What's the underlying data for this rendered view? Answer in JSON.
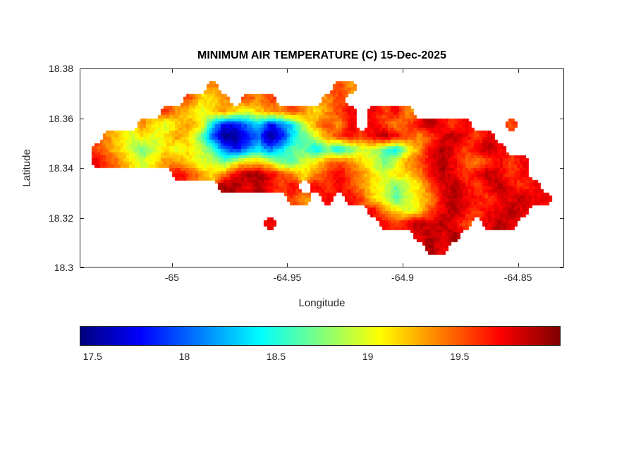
{
  "chart_data": {
    "type": "heatmap",
    "title": "MINIMUM AIR TEMPERATURE (C) 15-Dec-2025",
    "xlabel": "Longitude",
    "ylabel": "Latitude",
    "units": "C",
    "xlim": [
      -65.04,
      -64.83
    ],
    "ylim": [
      18.3,
      18.38
    ],
    "clim": [
      17.43,
      20.05
    ],
    "xticks": [
      -65,
      -64.95,
      -64.9,
      -64.85
    ],
    "xtick_labels": [
      "-65",
      "-64.95",
      "-64.9",
      "-64.85"
    ],
    "yticks": [
      18.3,
      18.32,
      18.34,
      18.36,
      18.38
    ],
    "ytick_labels": [
      "18.3",
      "18.32",
      "18.34",
      "18.36",
      "18.38"
    ],
    "colorbar": {
      "orientation": "horizontal",
      "colormap": "jet",
      "ticks": [
        17.5,
        18,
        18.5,
        19,
        19.5
      ],
      "tick_labels": [
        "17.5",
        "18",
        "18.5",
        "19",
        "19.5"
      ]
    },
    "grid": {
      "ncols": 42,
      "nrows": 16,
      "cell_deg": 0.005,
      "value_key": {
        "a": 17.45,
        "b": 17.75,
        "c": 18.05,
        "d": 18.35,
        "e": 18.65,
        "f": 18.95,
        "g": 19.15,
        "h": 19.35,
        "i": 19.55,
        "j": 19.75,
        "k": 19.95
      },
      "rows": [
        "..........................................",
        "...........h..........ih..................",
        ".........iggh.ihi....hi...................",
        ".......ihgfghgfghhihghij.jijh.............",
        ".....hgfghgdbbcdbcdfhihj.jihijkjij...i....",
        "..hgfgfghgecaabcabdefhijijkjihijkjij......",
        ".ihgfefgfgfecbcdcdeededeffedfhjkjijkj.....",
        ".jihgfghhgffefggfeefghihgfefhijkjihijij...",
        "........jihghjkkjihghijihgfgghjkjijkjij...",
        "............kkjkjij.jijihgfefgijkjijkjij..",
        "..................ih.j.jigfefghjkjjijjkjj.",
        ".........................jhgfgijkjijjkj...",
        "................j.........jijkjkji.jkj....",
        ".............................jkjk.........",
        "..............................kj..........",
        ".........................................."
      ]
    }
  }
}
